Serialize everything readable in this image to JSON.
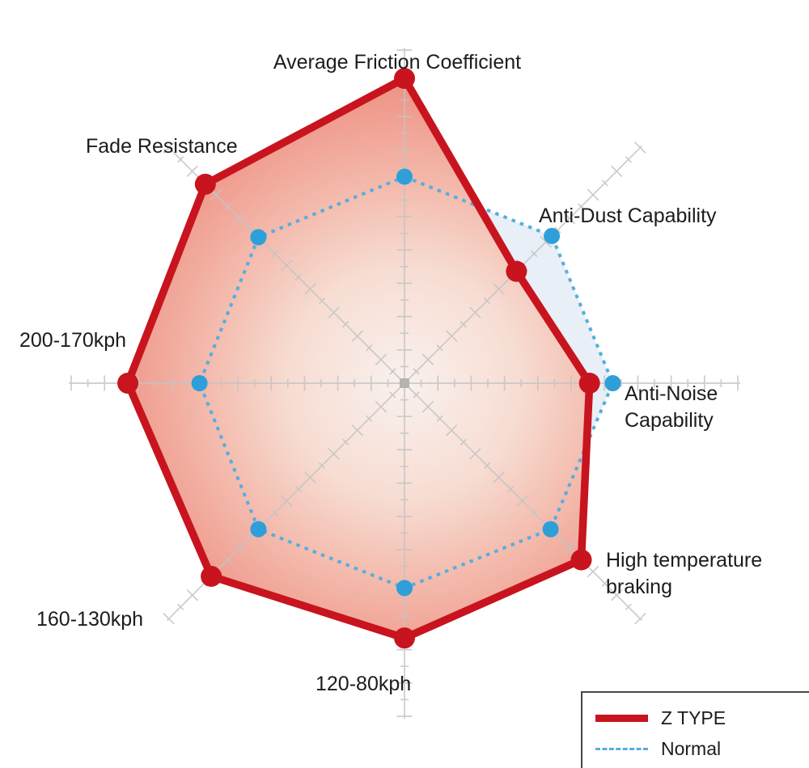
{
  "chart_data": {
    "type": "radar",
    "axes": [
      "Average Friction Coefficient",
      "Anti-Dust Capability",
      "Anti-Noise Capability",
      "High temperature braking",
      "120-80kph",
      "160-130kph",
      "200-170kph",
      "Fade Resistance"
    ],
    "series": [
      {
        "name": "Z TYPE",
        "style": "solid",
        "color": "#c8141e",
        "values": [
          9.15,
          4.75,
          5.55,
          7.5,
          7.65,
          8.2,
          8.3,
          8.45
        ]
      },
      {
        "name": "Normal",
        "style": "dashed",
        "color": "#2e9fd8",
        "line_color": "#56aede",
        "values": [
          6.2,
          6.25,
          6.25,
          6.2,
          6.15,
          6.2,
          6.15,
          6.2
        ]
      }
    ],
    "axis_range": [
      0,
      10
    ],
    "tick_interval": 0.5,
    "major_tick_interval": 1,
    "grid": "radial-spokes-with-ticks",
    "legend_position": "bottom-right",
    "fill_colors": {
      "z_type_center": "#f9f1ed",
      "z_type_rim": "#ee9285",
      "normal_fill": "#e8eff6"
    },
    "grid_color": "#c4c4c4"
  }
}
